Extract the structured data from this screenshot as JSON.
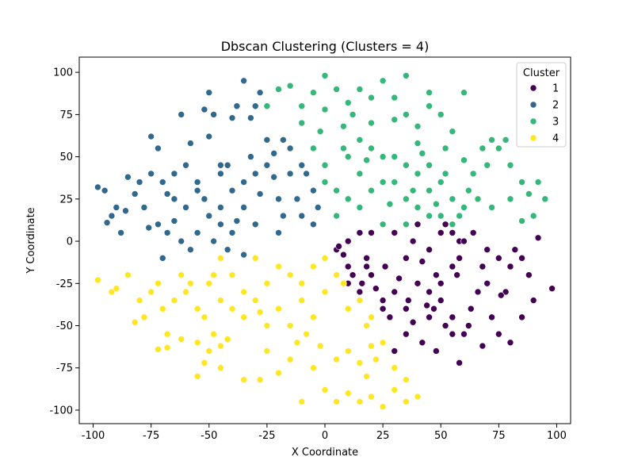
{
  "chart_data": {
    "type": "scatter",
    "title": "Dbscan Clustering (Clusters = 4)",
    "xlabel": "X Coordinate",
    "ylabel": "Y Coordinate",
    "xlim": [
      -106,
      106
    ],
    "ylim": [
      -108,
      109
    ],
    "xticks": [
      -100,
      -75,
      -50,
      -25,
      0,
      25,
      50,
      75,
      100
    ],
    "yticks": [
      -100,
      -75,
      -50,
      -25,
      0,
      25,
      50,
      75,
      100
    ],
    "grid": false,
    "legend": {
      "title": "Cluster",
      "position": "top-right",
      "entries": [
        "1",
        "2",
        "3",
        "4"
      ]
    },
    "colors": {
      "1": "#440154",
      "2": "#31688e",
      "3": "#35b779",
      "4": "#fde725"
    },
    "series": [
      {
        "name": "1",
        "points": [
          [
            5,
            -5
          ],
          [
            10,
            -15
          ],
          [
            20,
            -20
          ],
          [
            30,
            -30
          ],
          [
            35,
            -10
          ],
          [
            45,
            -5
          ],
          [
            50,
            5
          ],
          [
            55,
            -15
          ],
          [
            40,
            -25
          ],
          [
            25,
            -40
          ],
          [
            15,
            -30
          ],
          [
            30,
            5
          ],
          [
            40,
            10
          ],
          [
            15,
            5
          ],
          [
            52,
            10
          ],
          [
            58,
            0
          ],
          [
            45,
            -30
          ],
          [
            35,
            -40
          ],
          [
            28,
            -45
          ],
          [
            20,
            5
          ],
          [
            10,
            0
          ],
          [
            48,
            -20
          ],
          [
            38,
            0
          ],
          [
            26,
            -15
          ],
          [
            32,
            -22
          ],
          [
            18,
            -10
          ],
          [
            42,
            -12
          ],
          [
            22,
            -28
          ],
          [
            12,
            -20
          ],
          [
            55,
            5
          ],
          [
            8,
            -8
          ],
          [
            36,
            -35
          ],
          [
            44,
            -38
          ],
          [
            50,
            -25
          ],
          [
            58,
            -10
          ],
          [
            60,
            0
          ],
          [
            64,
            5
          ],
          [
            70,
            -5
          ],
          [
            68,
            -15
          ],
          [
            75,
            -10
          ],
          [
            80,
            -15
          ],
          [
            85,
            -10
          ],
          [
            92,
            2
          ],
          [
            98,
            -28
          ],
          [
            78,
            -30
          ],
          [
            90,
            -35
          ],
          [
            85,
            -45
          ],
          [
            72,
            -45
          ],
          [
            62,
            -50
          ],
          [
            55,
            -55
          ],
          [
            48,
            -65
          ],
          [
            58,
            -72
          ],
          [
            42,
            -60
          ],
          [
            35,
            -55
          ],
          [
            60,
            -55
          ],
          [
            75,
            -55
          ],
          [
            80,
            -60
          ],
          [
            68,
            -62
          ],
          [
            30,
            -65
          ],
          [
            52,
            -50
          ],
          [
            82,
            -5
          ],
          [
            88,
            -20
          ],
          [
            66,
            -30
          ],
          [
            70,
            -25
          ],
          [
            63,
            -40
          ],
          [
            76,
            -32
          ],
          [
            45,
            -45
          ],
          [
            55,
            -45
          ],
          [
            38,
            -48
          ],
          [
            25,
            -35
          ],
          [
            18,
            -15
          ],
          [
            6,
            -3
          ],
          [
            10,
            -25
          ],
          [
            16,
            -25
          ],
          [
            50,
            -35
          ],
          [
            57,
            -20
          ],
          [
            47,
            -40
          ]
        ]
      },
      {
        "name": "2",
        "points": [
          [
            -10,
            15
          ],
          [
            -20,
            25
          ],
          [
            -30,
            10
          ],
          [
            -40,
            5
          ],
          [
            -45,
            20
          ],
          [
            -35,
            35
          ],
          [
            -25,
            45
          ],
          [
            -15,
            40
          ],
          [
            -5,
            30
          ],
          [
            -20,
            5
          ],
          [
            -40,
            30
          ],
          [
            -30,
            40
          ],
          [
            -50,
            15
          ],
          [
            -48,
            0
          ],
          [
            -15,
            55
          ],
          [
            -10,
            45
          ],
          [
            -25,
            60
          ],
          [
            -5,
            10
          ],
          [
            -35,
            20
          ],
          [
            -45,
            40
          ],
          [
            -28,
            28
          ],
          [
            -18,
            15
          ],
          [
            -38,
            12
          ],
          [
            -22,
            38
          ],
          [
            -32,
            50
          ],
          [
            -42,
            45
          ],
          [
            -55,
            5
          ],
          [
            -52,
            25
          ],
          [
            -12,
            25
          ],
          [
            -8,
            40
          ],
          [
            -60,
            20
          ],
          [
            -65,
            25
          ],
          [
            -70,
            35
          ],
          [
            -75,
            40
          ],
          [
            -80,
            35
          ],
          [
            -85,
            38
          ],
          [
            -90,
            20
          ],
          [
            -88,
            5
          ],
          [
            -95,
            30
          ],
          [
            -98,
            32
          ],
          [
            -92,
            15
          ],
          [
            -78,
            20
          ],
          [
            -72,
            10
          ],
          [
            -68,
            5
          ],
          [
            -62,
            0
          ],
          [
            -70,
            -10
          ],
          [
            -58,
            -5
          ],
          [
            -55,
            35
          ],
          [
            -60,
            45
          ],
          [
            -65,
            40
          ],
          [
            -72,
            55
          ],
          [
            -75,
            62
          ],
          [
            -58,
            58
          ],
          [
            -50,
            62
          ],
          [
            -45,
            45
          ],
          [
            -48,
            75
          ],
          [
            -52,
            78
          ],
          [
            -40,
            73
          ],
          [
            -38,
            80
          ],
          [
            -30,
            80
          ],
          [
            -32,
            73
          ],
          [
            -28,
            88
          ],
          [
            -35,
            95
          ],
          [
            -50,
            88
          ],
          [
            -62,
            75
          ],
          [
            -55,
            30
          ],
          [
            -68,
            28
          ],
          [
            -82,
            28
          ],
          [
            -86,
            18
          ],
          [
            -94,
            11
          ],
          [
            -76,
            8
          ],
          [
            -65,
            12
          ],
          [
            -45,
            10
          ],
          [
            -42,
            -5
          ],
          [
            -35,
            -8
          ],
          [
            -18,
            60
          ],
          [
            -22,
            52
          ],
          [
            -3,
            20
          ]
        ]
      },
      {
        "name": "3",
        "points": [
          [
            5,
            30
          ],
          [
            15,
            40
          ],
          [
            25,
            35
          ],
          [
            35,
            25
          ],
          [
            45,
            30
          ],
          [
            50,
            15
          ],
          [
            30,
            50
          ],
          [
            20,
            55
          ],
          [
            10,
            50
          ],
          [
            0,
            45
          ],
          [
            -5,
            55
          ],
          [
            40,
            40
          ],
          [
            55,
            25
          ],
          [
            15,
            20
          ],
          [
            25,
            10
          ],
          [
            5,
            15
          ],
          [
            35,
            45
          ],
          [
            45,
            45
          ],
          [
            60,
            20
          ],
          [
            0,
            35
          ],
          [
            10,
            25
          ],
          [
            20,
            30
          ],
          [
            30,
            35
          ],
          [
            40,
            20
          ],
          [
            50,
            35
          ],
          [
            15,
            60
          ],
          [
            25,
            50
          ],
          [
            35,
            10
          ],
          [
            45,
            15
          ],
          [
            55,
            10
          ],
          [
            8,
            55
          ],
          [
            18,
            48
          ],
          [
            28,
            22
          ],
          [
            38,
            30
          ],
          [
            48,
            22
          ],
          [
            58,
            15
          ],
          [
            62,
            30
          ],
          [
            64,
            40
          ],
          [
            68,
            55
          ],
          [
            72,
            60
          ],
          [
            75,
            55
          ],
          [
            80,
            45
          ],
          [
            85,
            35
          ],
          [
            88,
            28
          ],
          [
            95,
            25
          ],
          [
            92,
            35
          ],
          [
            78,
            60
          ],
          [
            70,
            45
          ],
          [
            66,
            25
          ],
          [
            72,
            20
          ],
          [
            80,
            25
          ],
          [
            90,
            15
          ],
          [
            85,
            12
          ],
          [
            60,
            48
          ],
          [
            52,
            55
          ],
          [
            55,
            65
          ],
          [
            50,
            75
          ],
          [
            45,
            80
          ],
          [
            40,
            68
          ],
          [
            35,
            75
          ],
          [
            30,
            85
          ],
          [
            25,
            95
          ],
          [
            35,
            98
          ],
          [
            45,
            88
          ],
          [
            20,
            85
          ],
          [
            15,
            90
          ],
          [
            5,
            90
          ],
          [
            0,
            98
          ],
          [
            -5,
            88
          ],
          [
            -10,
            80
          ],
          [
            -15,
            92
          ],
          [
            -20,
            90
          ],
          [
            -25,
            80
          ],
          [
            -10,
            70
          ],
          [
            0,
            78
          ],
          [
            10,
            82
          ],
          [
            20,
            70
          ],
          [
            30,
            72
          ],
          [
            40,
            58
          ],
          [
            42,
            52
          ],
          [
            52,
            40
          ],
          [
            60,
            88
          ],
          [
            12,
            75
          ],
          [
            -2,
            65
          ],
          [
            8,
            68
          ]
        ]
      },
      {
        "name": "4",
        "points": [
          [
            -5,
            -15
          ],
          [
            -15,
            -20
          ],
          [
            -25,
            -25
          ],
          [
            -35,
            -30
          ],
          [
            -45,
            -35
          ],
          [
            -20,
            -40
          ],
          [
            -10,
            -35
          ],
          [
            0,
            -30
          ],
          [
            10,
            -40
          ],
          [
            20,
            -45
          ],
          [
            -30,
            -10
          ],
          [
            -40,
            -20
          ],
          [
            -50,
            -25
          ],
          [
            -45,
            -10
          ],
          [
            5,
            -20
          ],
          [
            15,
            -35
          ],
          [
            -25,
            -50
          ],
          [
            -35,
            -45
          ],
          [
            -15,
            -50
          ],
          [
            -5,
            -45
          ],
          [
            -30,
            -35
          ],
          [
            -20,
            -15
          ],
          [
            -10,
            -25
          ],
          [
            -40,
            -40
          ],
          [
            0,
            -10
          ],
          [
            8,
            -25
          ],
          [
            18,
            -50
          ],
          [
            -8,
            -55
          ],
          [
            -28,
            -42
          ],
          [
            -48,
            -20
          ],
          [
            -55,
            -40
          ],
          [
            -60,
            -30
          ],
          [
            -65,
            -35
          ],
          [
            -70,
            -40
          ],
          [
            -72,
            -25
          ],
          [
            -75,
            -30
          ],
          [
            -80,
            -35
          ],
          [
            -85,
            -20
          ],
          [
            -92,
            -30
          ],
          [
            -98,
            -23
          ],
          [
            -78,
            -45
          ],
          [
            -82,
            -48
          ],
          [
            -68,
            -55
          ],
          [
            -62,
            -58
          ],
          [
            -68,
            -63
          ],
          [
            -72,
            -64
          ],
          [
            -55,
            -60
          ],
          [
            -50,
            -65
          ],
          [
            -52,
            -72
          ],
          [
            -45,
            -62
          ],
          [
            -48,
            -55
          ],
          [
            -42,
            -58
          ],
          [
            -55,
            -80
          ],
          [
            -45,
            -75
          ],
          [
            -35,
            -82
          ],
          [
            -28,
            -82
          ],
          [
            -20,
            -78
          ],
          [
            -10,
            -95
          ],
          [
            -5,
            -75
          ],
          [
            0,
            -88
          ],
          [
            5,
            -95
          ],
          [
            10,
            -90
          ],
          [
            15,
            -95
          ],
          [
            20,
            -92
          ],
          [
            25,
            -98
          ],
          [
            30,
            -88
          ],
          [
            35,
            -95
          ],
          [
            40,
            -92
          ],
          [
            35,
            -82
          ],
          [
            30,
            -75
          ],
          [
            22,
            -70
          ],
          [
            15,
            -72
          ],
          [
            10,
            -65
          ],
          [
            20,
            -62
          ],
          [
            -15,
            -70
          ],
          [
            -25,
            -65
          ],
          [
            -12,
            -60
          ],
          [
            -2,
            -62
          ],
          [
            5,
            -70
          ],
          [
            -58,
            -25
          ],
          [
            -52,
            -45
          ],
          [
            25,
            -60
          ],
          [
            18,
            -80
          ],
          [
            -90,
            -28
          ],
          [
            -62,
            -20
          ]
        ]
      }
    ]
  }
}
